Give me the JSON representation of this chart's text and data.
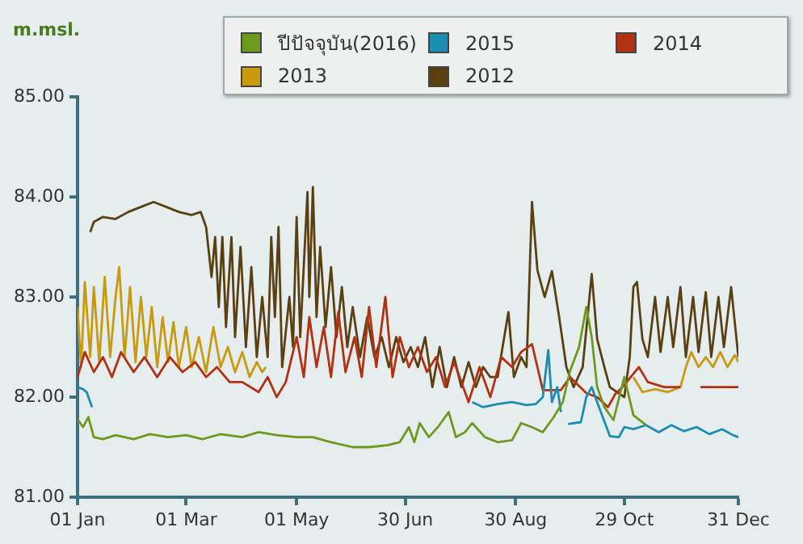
{
  "chart_data": {
    "type": "line",
    "ylabel": "m.msl.",
    "legend": "top right",
    "grid": false,
    "xlim": [
      "--01-01",
      "--12-31"
    ],
    "xticks": [
      {
        "value": "--01-01",
        "label": "01 Jan"
      },
      {
        "value": "--03-01",
        "label": "01 Mar"
      },
      {
        "value": "--05-01",
        "label": "01 May"
      },
      {
        "value": "--06-30",
        "label": "30 Jun"
      },
      {
        "value": "--08-30",
        "label": "30 Aug"
      },
      {
        "value": "--10-29",
        "label": "29 Oct"
      },
      {
        "value": "--12-31",
        "label": "31 Dec"
      }
    ],
    "ylim": [
      81,
      85
    ],
    "yticks": [
      {
        "value": 81,
        "label": "81.00"
      },
      {
        "value": 82,
        "label": "82.00"
      },
      {
        "value": 83,
        "label": "83.00"
      },
      {
        "value": 84,
        "label": "84.00"
      },
      {
        "value": 85,
        "label": "85.00"
      }
    ],
    "series": [
      {
        "name": "ปีปัจจุบัน(2016)",
        "color": "#6b9a1f",
        "x": [
          "--01-01",
          "--01-04",
          "--01-07",
          "--01-10",
          "--01-15",
          "--01-22",
          "--02-01",
          "--02-10",
          "--02-20",
          "--03-01",
          "--03-10",
          "--03-20",
          "--04-01",
          "--04-10",
          "--04-20",
          "--05-01",
          "--05-10",
          "--05-20",
          "--06-01",
          "--06-10",
          "--06-20",
          "--06-27",
          "--07-02",
          "--07-05",
          "--07-08",
          "--07-13",
          "--07-18",
          "--07-24",
          "--07-28",
          "--08-02",
          "--08-06",
          "--08-13",
          "--08-20",
          "--08-28",
          "--09-02",
          "--09-08",
          "--09-14",
          "--09-20",
          "--09-25",
          "--09-29",
          "--10-04",
          "--10-08",
          "--10-11",
          "--10-14",
          "--10-18",
          "--10-23",
          "--10-29",
          "--11-03",
          "--11-10"
        ],
        "values": [
          81.78,
          81.7,
          81.8,
          81.6,
          81.58,
          81.62,
          81.58,
          81.63,
          81.6,
          81.62,
          81.58,
          81.63,
          81.6,
          81.65,
          81.62,
          81.6,
          81.6,
          81.55,
          81.5,
          81.5,
          81.52,
          81.55,
          81.7,
          81.55,
          81.74,
          81.6,
          81.7,
          81.85,
          81.6,
          81.65,
          81.74,
          81.6,
          81.55,
          81.57,
          81.74,
          81.7,
          81.65,
          81.8,
          81.95,
          82.26,
          82.5,
          82.9,
          82.6,
          82.1,
          81.9,
          81.77,
          82.2,
          81.82,
          81.72
        ]
      },
      {
        "name": "2015",
        "color": "#1a8db0",
        "x": [
          "--01-01",
          "--01-04",
          "--01-06",
          "--01-09",
          "--01-10",
          "--08-06",
          "--08-12",
          "--08-20",
          "--08-28",
          "--09-05",
          "--09-10",
          "--09-14",
          "--09-17",
          "--09-19",
          "--09-22",
          "--09-24",
          "--09-26",
          "--09-28",
          "--10-05",
          "--10-08",
          "--10-11",
          "--10-14",
          "--10-21",
          "--10-26",
          "--10-29",
          "--11-03",
          "--11-10",
          "--11-17",
          "--11-24",
          "--12-01",
          "--12-08",
          "--12-15",
          "--12-22",
          "--12-28",
          "--12-31"
        ],
        "values": [
          82.1,
          82.08,
          82.05,
          81.9,
          null,
          81.95,
          81.9,
          81.93,
          81.95,
          81.92,
          81.93,
          82.0,
          82.47,
          81.95,
          82.1,
          81.85,
          null,
          81.73,
          81.75,
          82.0,
          82.1,
          81.95,
          81.61,
          81.6,
          81.7,
          81.68,
          81.72,
          81.65,
          81.72,
          81.66,
          81.7,
          81.63,
          81.68,
          81.62,
          81.6
        ]
      },
      {
        "name": "2014",
        "color": "#b33010",
        "x": [
          "--01-01",
          "--01-05",
          "--01-10",
          "--01-15",
          "--01-20",
          "--01-25",
          "--02-01",
          "--02-07",
          "--02-14",
          "--02-21",
          "--02-28",
          "--03-06",
          "--03-12",
          "--03-18",
          "--03-25",
          "--04-01",
          "--04-10",
          "--04-15",
          "--04-20",
          "--04-25",
          "--05-01",
          "--05-05",
          "--05-08",
          "--05-12",
          "--05-16",
          "--05-20",
          "--05-24",
          "--05-28",
          "--06-02",
          "--06-06",
          "--06-10",
          "--06-14",
          "--06-19",
          "--06-23",
          "--06-27",
          "--07-02",
          "--07-07",
          "--07-12",
          "--07-17",
          "--07-22",
          "--07-27",
          "--08-01",
          "--08-04",
          "--08-10",
          "--08-16",
          "--08-22",
          "--08-28",
          "--09-02",
          "--09-08",
          "--09-14",
          "--09-24",
          "--09-29",
          "--10-08",
          "--10-14",
          "--10-20",
          "--10-24",
          "--10-28",
          "--11-06",
          "--11-11",
          "--11-20",
          "--11-29",
          "--12-03",
          "--12-10",
          "--12-20",
          "--12-31"
        ],
        "values": [
          82.2,
          82.45,
          82.25,
          82.4,
          82.2,
          82.45,
          82.25,
          82.4,
          82.2,
          82.4,
          82.25,
          82.35,
          82.2,
          82.3,
          82.15,
          82.15,
          82.05,
          82.2,
          82.0,
          82.15,
          82.6,
          82.2,
          82.8,
          82.3,
          82.7,
          82.2,
          82.85,
          82.25,
          82.6,
          82.2,
          82.9,
          82.3,
          83.0,
          82.2,
          82.6,
          82.3,
          82.5,
          82.25,
          82.4,
          82.1,
          82.35,
          82.1,
          81.95,
          82.3,
          82.0,
          82.4,
          82.3,
          82.45,
          82.53,
          82.07,
          82.07,
          82.2,
          82.04,
          82.0,
          81.9,
          82.03,
          82.1,
          82.3,
          82.15,
          82.1,
          82.1,
          null,
          82.1,
          82.1,
          82.1
        ]
      },
      {
        "name": "2013",
        "color": "#c89a10",
        "x": [
          "--01-01",
          "--01-03",
          "--01-05",
          "--01-08",
          "--01-10",
          "--01-13",
          "--01-16",
          "--01-19",
          "--01-22",
          "--01-24",
          "--01-27",
          "--01-30",
          "--02-02",
          "--02-05",
          "--02-08",
          "--02-11",
          "--02-14",
          "--02-17",
          "--02-20",
          "--02-23",
          "--02-26",
          "--03-01",
          "--03-04",
          "--03-08",
          "--03-12",
          "--03-16",
          "--03-20",
          "--03-24",
          "--03-28",
          "--04-01",
          "--04-05",
          "--04-09",
          "--04-12",
          "--04-14",
          "--04-16",
          "--11-03",
          "--11-08",
          "--11-15",
          "--11-22",
          "--11-29",
          "--12-02",
          "--12-05",
          "--12-09",
          "--12-13",
          "--12-17",
          "--12-21",
          "--12-25",
          "--12-29",
          "--12-31"
        ],
        "values": [
          82.9,
          82.3,
          83.15,
          82.4,
          83.1,
          82.35,
          83.2,
          82.4,
          83.0,
          83.3,
          82.4,
          83.1,
          82.35,
          83.0,
          82.4,
          82.9,
          82.3,
          82.8,
          82.35,
          82.75,
          82.3,
          82.7,
          82.3,
          82.6,
          82.25,
          82.7,
          82.3,
          82.5,
          82.25,
          82.45,
          82.2,
          82.35,
          82.25,
          82.3,
          null,
          82.2,
          82.05,
          82.08,
          82.05,
          82.1,
          82.3,
          82.45,
          82.3,
          82.4,
          82.3,
          82.45,
          82.3,
          82.42,
          82.35
        ]
      },
      {
        "name": "2012",
        "color": "#5a4010",
        "x": [
          "--01-08",
          "--01-10",
          "--01-15",
          "--01-22",
          "--01-29",
          "--02-05",
          "--02-12",
          "--02-19",
          "--02-26",
          "--03-04",
          "--03-09",
          "--03-12",
          "--03-15",
          "--03-17",
          "--03-19",
          "--03-21",
          "--03-23",
          "--03-26",
          "--03-28",
          "--03-31",
          "--04-03",
          "--04-06",
          "--04-09",
          "--04-12",
          "--04-15",
          "--04-17",
          "--04-19",
          "--04-21",
          "--04-23",
          "--04-27",
          "--04-29",
          "--05-01",
          "--05-03",
          "--05-07",
          "--05-08",
          "--05-10",
          "--05-12",
          "--05-14",
          "--05-17",
          "--05-20",
          "--05-23",
          "--05-26",
          "--05-29",
          "--06-01",
          "--06-05",
          "--06-09",
          "--06-13",
          "--06-17",
          "--06-21",
          "--06-25",
          "--06-29",
          "--07-03",
          "--07-07",
          "--07-11",
          "--07-15",
          "--07-19",
          "--07-23",
          "--07-27",
          "--07-31",
          "--08-04",
          "--08-08",
          "--08-12",
          "--08-16",
          "--08-20",
          "--08-26",
          "--08-29",
          "--09-02",
          "--09-05",
          "--09-08",
          "--09-11",
          "--09-15",
          "--09-19",
          "--09-23",
          "--09-27",
          "--10-01",
          "--10-06",
          "--10-11",
          "--10-14",
          "--10-18",
          "--10-21",
          "--10-29",
          "--11-01",
          "--11-03",
          "--11-05",
          "--11-08",
          "--11-11",
          "--11-15",
          "--11-18",
          "--11-22",
          "--11-25",
          "--11-29",
          "--12-02",
          "--12-06",
          "--12-09",
          "--12-13",
          "--12-16",
          "--12-20",
          "--12-23",
          "--12-27",
          "--12-31"
        ],
        "values": [
          83.65,
          83.75,
          83.8,
          83.78,
          83.85,
          83.9,
          83.95,
          83.9,
          83.85,
          83.82,
          83.85,
          83.7,
          83.2,
          83.6,
          82.9,
          83.6,
          82.7,
          83.6,
          82.6,
          83.5,
          82.5,
          83.3,
          82.4,
          83.0,
          82.4,
          83.6,
          82.8,
          83.7,
          82.3,
          83.0,
          82.5,
          83.8,
          82.6,
          84.05,
          83.0,
          84.1,
          82.8,
          83.5,
          82.7,
          83.3,
          82.6,
          83.1,
          82.5,
          82.9,
          82.4,
          82.8,
          82.4,
          82.6,
          82.3,
          82.6,
          82.35,
          82.5,
          82.3,
          82.6,
          82.1,
          82.5,
          82.1,
          82.4,
          82.1,
          82.35,
          82.1,
          82.3,
          82.2,
          82.2,
          82.85,
          82.2,
          82.4,
          82.3,
          83.95,
          83.27,
          83.0,
          83.26,
          82.8,
          82.3,
          82.1,
          82.3,
          83.23,
          82.58,
          82.3,
          82.1,
          82.0,
          82.4,
          83.1,
          83.15,
          82.58,
          82.4,
          83.0,
          82.45,
          83.0,
          82.5,
          83.1,
          82.4,
          83.0,
          82.45,
          83.05,
          82.4,
          83.0,
          82.5,
          83.1,
          82.4
        ]
      }
    ]
  }
}
